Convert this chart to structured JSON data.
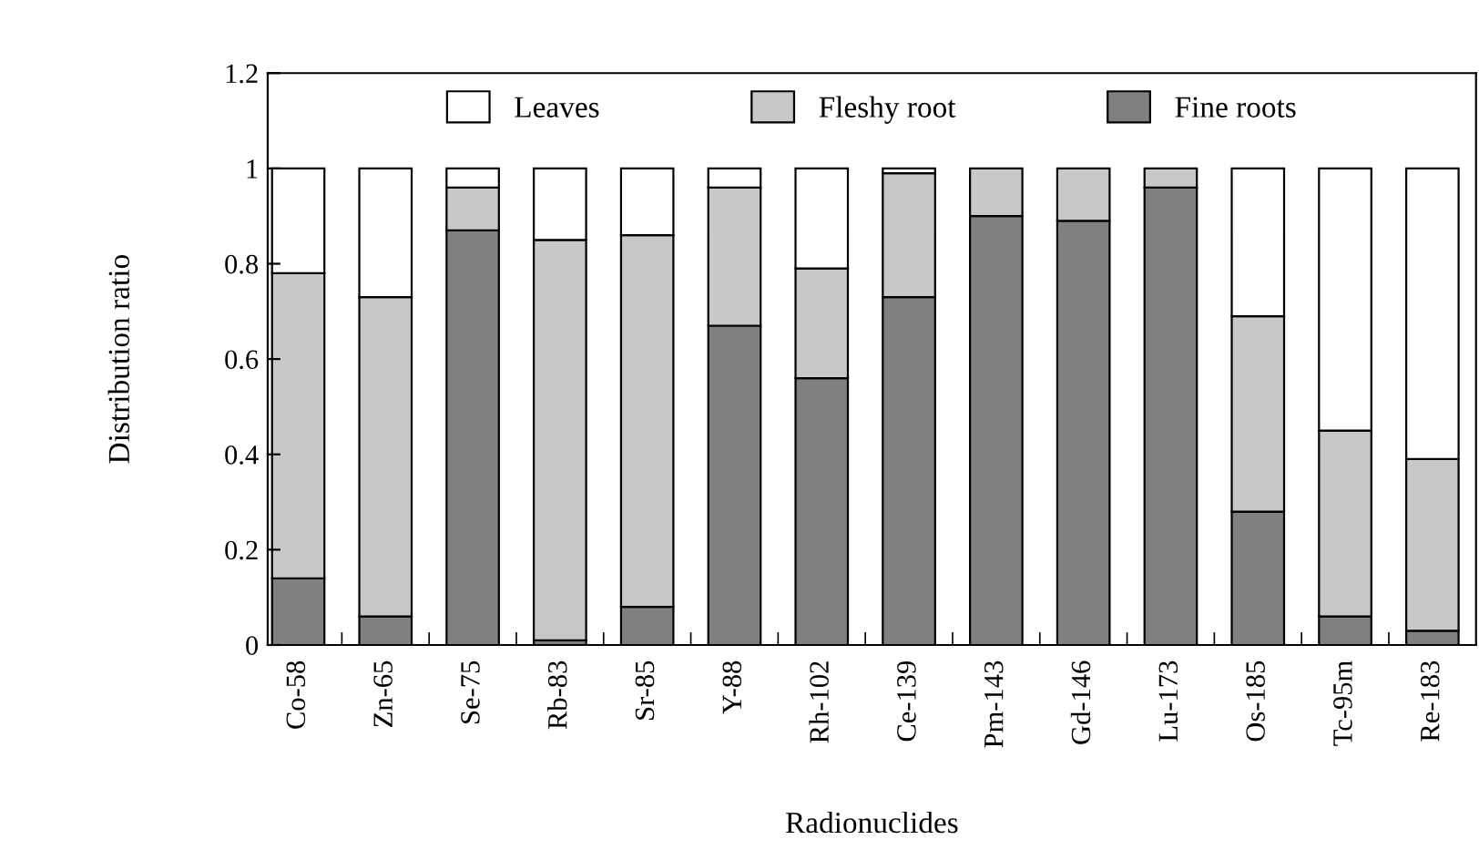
{
  "chart_data": {
    "type": "bar",
    "stacked": true,
    "xlabel": "Radionuclides",
    "ylabel": "Distribution ratio",
    "categories": [
      "Co-58",
      "Zn-65",
      "Se-75",
      "Rb-83",
      "Sr-85",
      "Y-88",
      "Rh-102",
      "Ce-139",
      "Pm-143",
      "Gd-146",
      "Lu-173",
      "Os-185",
      "Tc-95m",
      "Re-183"
    ],
    "series": [
      {
        "name": "Fine roots",
        "color": "#808080",
        "values": [
          0.14,
          0.06,
          0.87,
          0.01,
          0.08,
          0.67,
          0.56,
          0.73,
          0.9,
          0.89,
          0.96,
          0.28,
          0.06,
          0.03
        ]
      },
      {
        "name": "Fleshy root",
        "color": "#c8c8c8",
        "values": [
          0.64,
          0.67,
          0.09,
          0.84,
          0.78,
          0.29,
          0.23,
          0.26,
          0.1,
          0.11,
          0.04,
          0.41,
          0.39,
          0.36
        ]
      },
      {
        "name": "Leaves",
        "color": "#ffffff",
        "values": [
          0.22,
          0.27,
          0.04,
          0.15,
          0.14,
          0.04,
          0.21,
          0.01,
          null,
          null,
          null,
          0.31,
          0.55,
          0.61
        ]
      }
    ],
    "ylim": [
      0,
      1.2
    ],
    "yticks": [
      0,
      0.2,
      0.4,
      0.6,
      0.8,
      1,
      1.2
    ],
    "legend": "top",
    "grid": false
  }
}
